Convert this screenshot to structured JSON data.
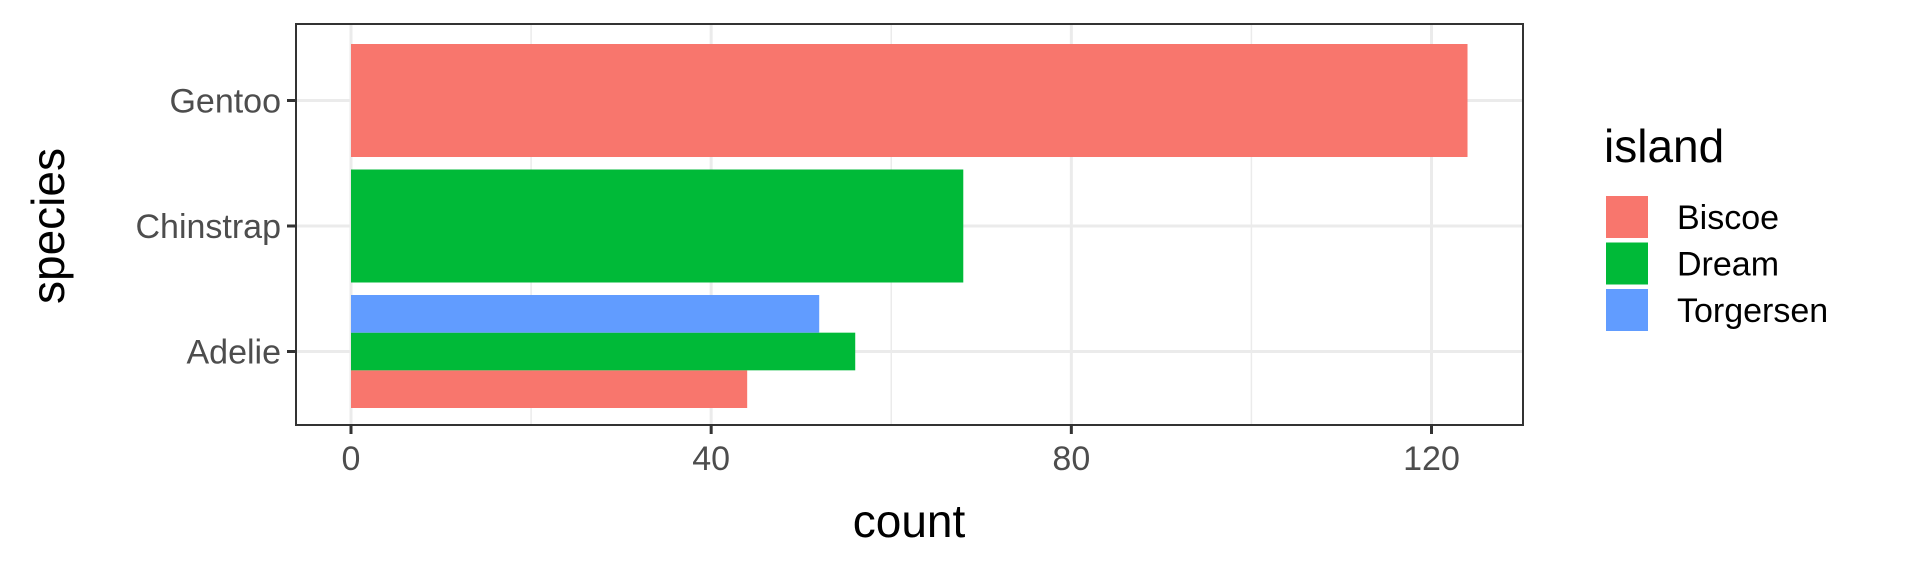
{
  "chart_data": {
    "type": "bar",
    "orientation": "horizontal",
    "position": "dodge",
    "xlabel": "count",
    "ylabel": "species",
    "categories": [
      "Adelie",
      "Chinstrap",
      "Gentoo"
    ],
    "xlim": [
      -6.2,
      130
    ],
    "xticks": [
      0,
      40,
      80,
      120
    ],
    "grid": true,
    "legend": {
      "title": "island",
      "position": "right",
      "entries": [
        "Biscoe",
        "Dream",
        "Torgersen"
      ]
    },
    "colors": {
      "Biscoe": "#F8766D",
      "Dream": "#00BA38",
      "Torgersen": "#619CFF"
    },
    "bars": [
      {
        "species": "Adelie",
        "island": "Biscoe",
        "count": 44
      },
      {
        "species": "Adelie",
        "island": "Dream",
        "count": 56
      },
      {
        "species": "Adelie",
        "island": "Torgersen",
        "count": 52
      },
      {
        "species": "Chinstrap",
        "island": "Dream",
        "count": 68
      },
      {
        "species": "Gentoo",
        "island": "Biscoe",
        "count": 124
      }
    ]
  }
}
